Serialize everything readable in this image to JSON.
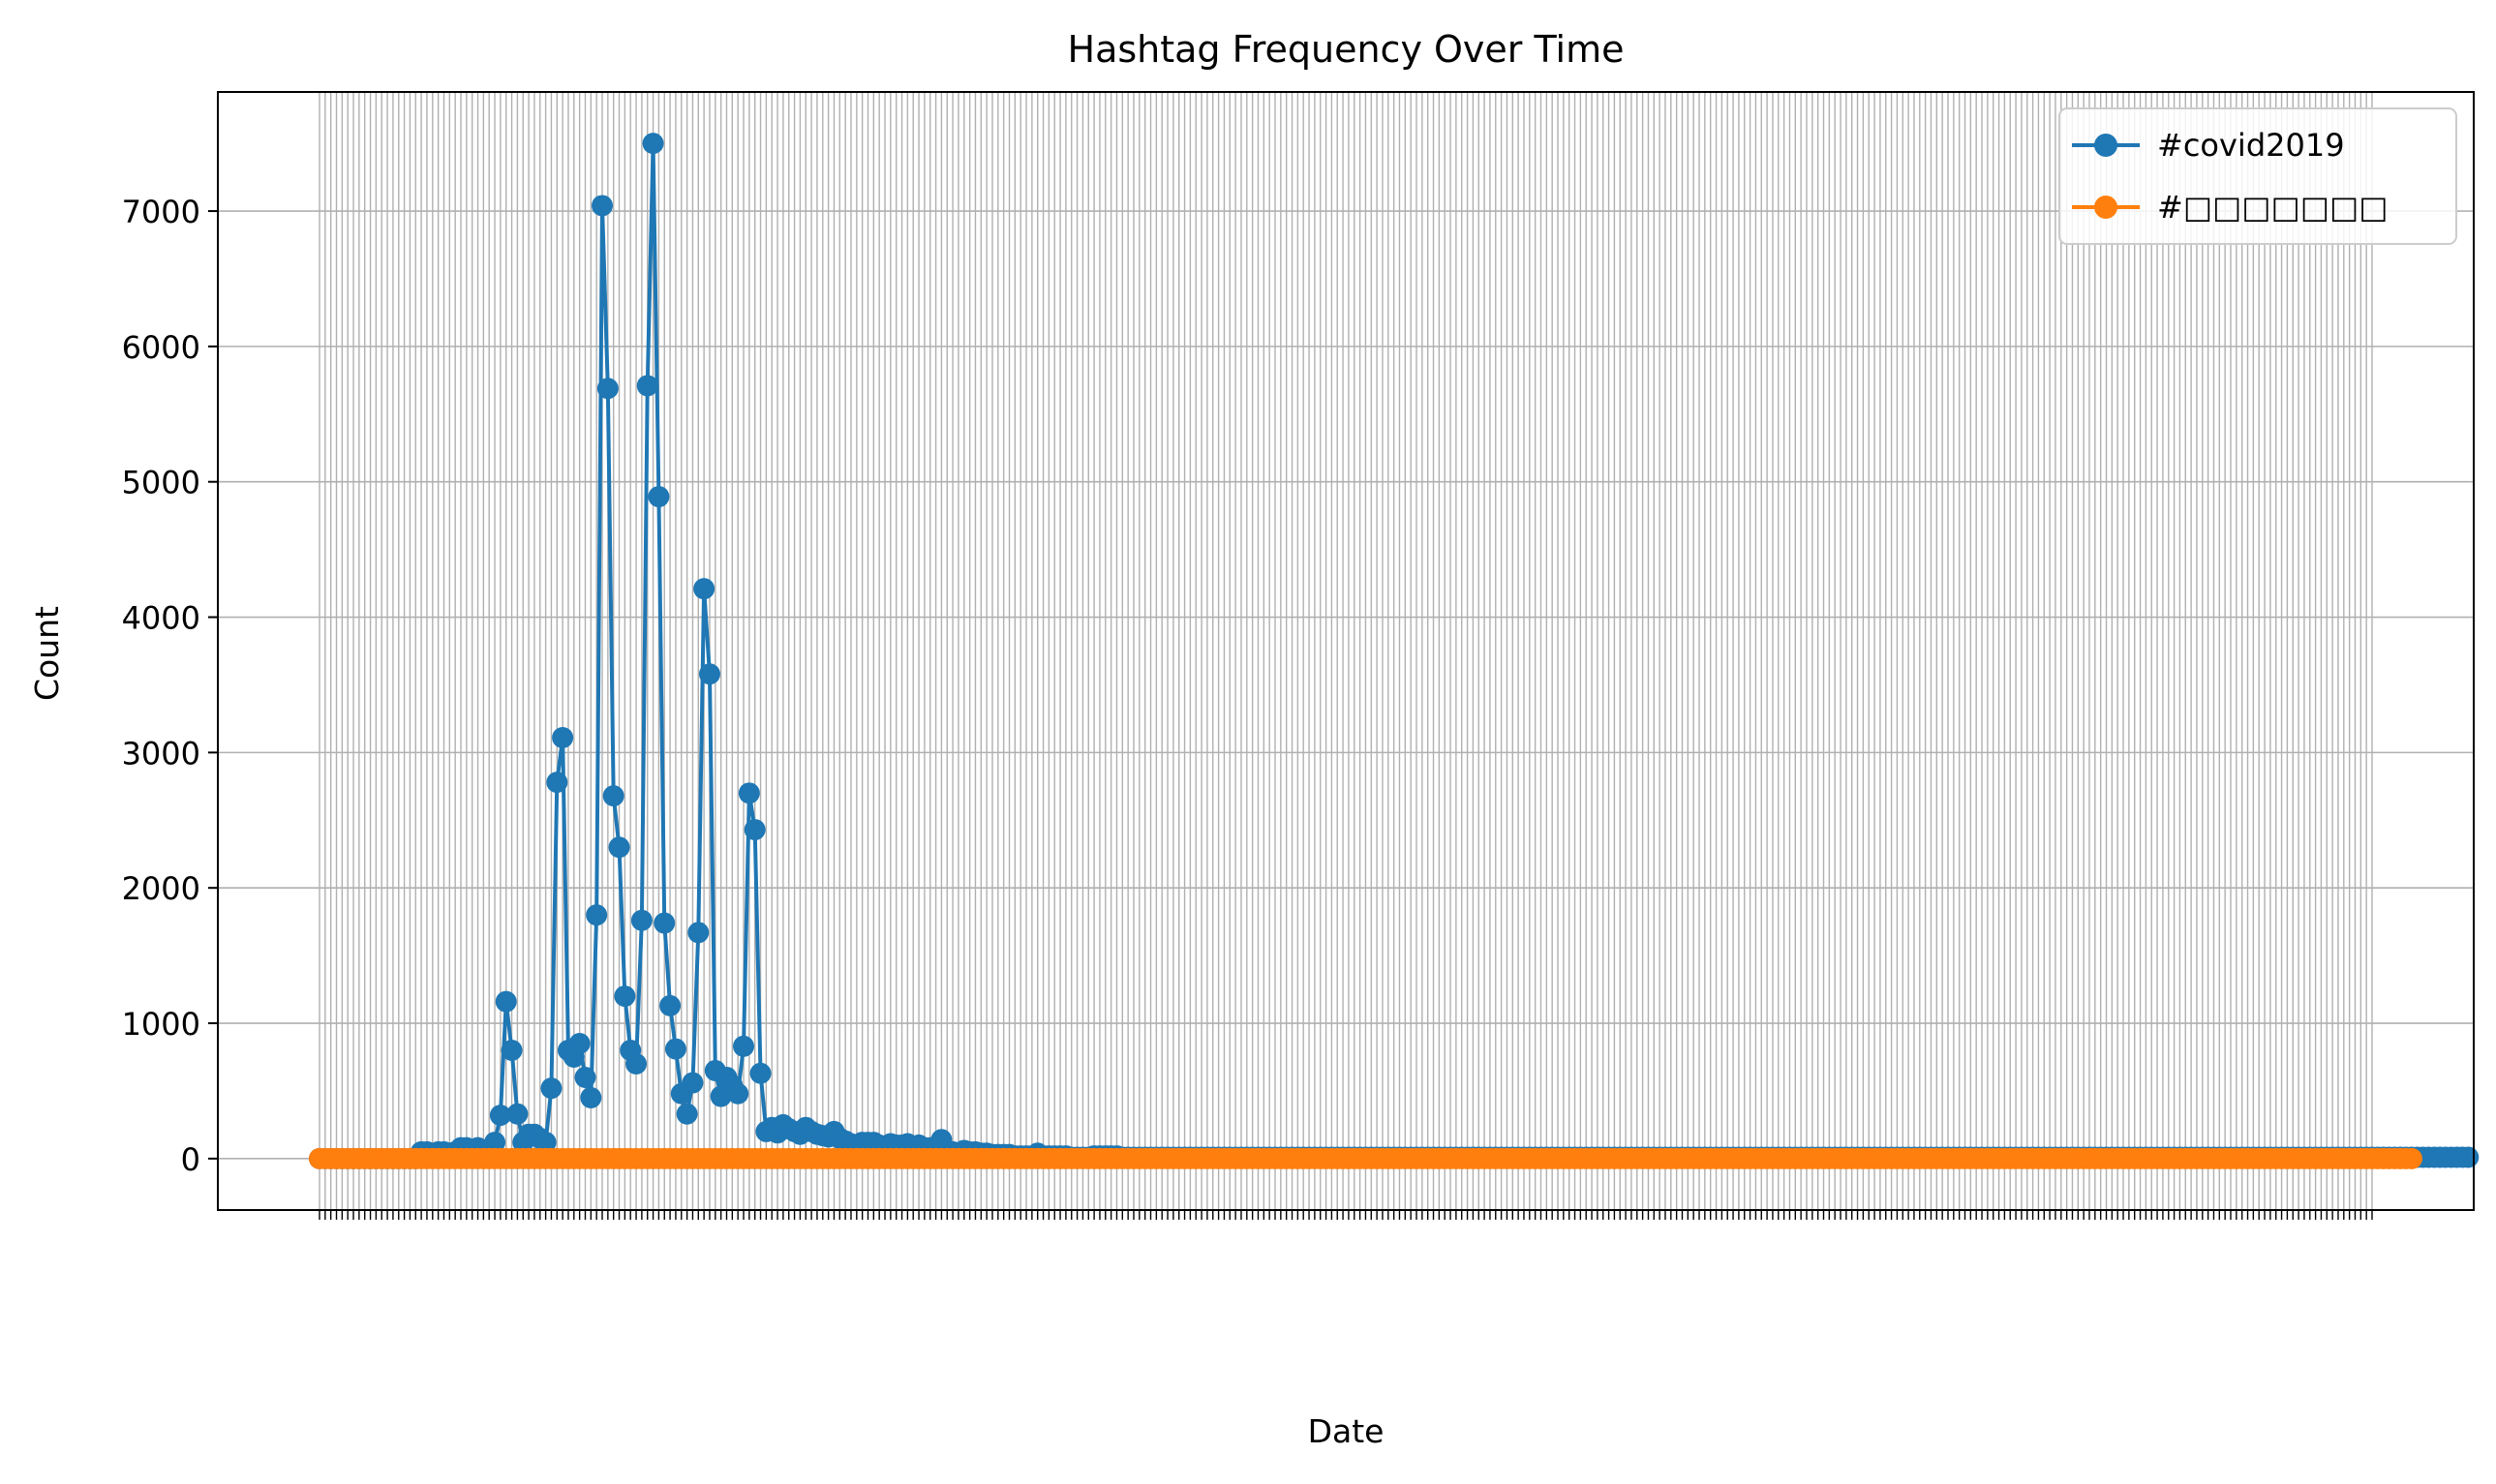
{
  "chart_data": {
    "type": "line",
    "title": "Hashtag Frequency Over Time",
    "xlabel": "Date",
    "ylabel": "Count",
    "ylim": [
      -380,
      7880
    ],
    "yticks": [
      0,
      1000,
      2000,
      3000,
      4000,
      5000,
      6000,
      7000
    ],
    "grid": true,
    "legend_position": "upper right",
    "x_point_count": 364,
    "x_tick_labels_note_text": "",
    "series": [
      {
        "name": "#covid2019",
        "color": "#1f77b4",
        "values": [
          0,
          0,
          0,
          0,
          0,
          0,
          0,
          0,
          0,
          0,
          0,
          0,
          0,
          0,
          0,
          0,
          0,
          0,
          50,
          50,
          30,
          50,
          50,
          40,
          50,
          80,
          80,
          60,
          80,
          60,
          60,
          120,
          320,
          1160,
          800,
          330,
          120,
          180,
          180,
          150,
          120,
          520,
          2780,
          3110,
          800,
          750,
          850,
          600,
          450,
          1800,
          7040,
          5690,
          2680,
          2300,
          1200,
          800,
          700,
          1760,
          5710,
          7500,
          4890,
          1740,
          1130,
          810,
          480,
          330,
          560,
          1670,
          4210,
          3580,
          650,
          460,
          600,
          540,
          480,
          830,
          2700,
          2430,
          630,
          200,
          230,
          190,
          250,
          220,
          200,
          180,
          230,
          200,
          180,
          170,
          160,
          200,
          150,
          130,
          110,
          100,
          120,
          120,
          120,
          100,
          80,
          110,
          100,
          100,
          110,
          90,
          100,
          80,
          80,
          80,
          140,
          50,
          50,
          40,
          60,
          50,
          50,
          40,
          40,
          30,
          30,
          30,
          30,
          20,
          20,
          20,
          20,
          40,
          20,
          20,
          20,
          20,
          20,
          10,
          10,
          10,
          10,
          20,
          20,
          20,
          20,
          20,
          10,
          10,
          10,
          10,
          10,
          10,
          10,
          10,
          10,
          10,
          10,
          10,
          10,
          10,
          10,
          10,
          10,
          10,
          10,
          10,
          10,
          10,
          10,
          10,
          10,
          10,
          10,
          10,
          10,
          10,
          10,
          10,
          10,
          10,
          10,
          10,
          10,
          10,
          10,
          10,
          10,
          10,
          10,
          10,
          10,
          10,
          10,
          10,
          10,
          10,
          10,
          10,
          10,
          10,
          10,
          10,
          10,
          10,
          10,
          10,
          10,
          10,
          10,
          10,
          10,
          10,
          10,
          10,
          10,
          10,
          10,
          10,
          10,
          10,
          10,
          10,
          10,
          10,
          10,
          10,
          10,
          10,
          10,
          10,
          10,
          10,
          10,
          10,
          10,
          10,
          10,
          10,
          10,
          10,
          10,
          10,
          10,
          10,
          10,
          10,
          10,
          10,
          10,
          10,
          10,
          10,
          10,
          10,
          10,
          10,
          10,
          10,
          10,
          10,
          10,
          10,
          10,
          10,
          10,
          10,
          10,
          10,
          10,
          10,
          10,
          10,
          10,
          10,
          10,
          10,
          10,
          10,
          10,
          10,
          10,
          10,
          10,
          10,
          10,
          10,
          10,
          10,
          10,
          10,
          10,
          10,
          10,
          10,
          10,
          10,
          10,
          10,
          10,
          10,
          10,
          10,
          10,
          10,
          10,
          10,
          10,
          10,
          10,
          10,
          10,
          10,
          10,
          10,
          10,
          10,
          10,
          10,
          10,
          10,
          10,
          10,
          10,
          10,
          10,
          10,
          10,
          10,
          10,
          10,
          10,
          10,
          10,
          10,
          10,
          10,
          10,
          10,
          10,
          10,
          10,
          10,
          10,
          10,
          10,
          10,
          10,
          10,
          10,
          10,
          10,
          10,
          10,
          10,
          10,
          10,
          10,
          10,
          10,
          10,
          10,
          10,
          10,
          10,
          10,
          10,
          10,
          10,
          10,
          10,
          10,
          10,
          10,
          10,
          10,
          10,
          10,
          10,
          10,
          10,
          10,
          10,
          10,
          10,
          10
        ]
      },
      {
        "name": "#□□□□□□□",
        "color": "#ff7f0e",
        "values": [
          0,
          0,
          0,
          0,
          0,
          0,
          0,
          0,
          0,
          0,
          0,
          0,
          0,
          0,
          0,
          0,
          0,
          0,
          0,
          0,
          0,
          0,
          0,
          0,
          0,
          0,
          0,
          0,
          0,
          0,
          0,
          0,
          0,
          0,
          0,
          0,
          0,
          0,
          0,
          0,
          0,
          0,
          0,
          0,
          0,
          0,
          0,
          0,
          0,
          0,
          0,
          0,
          0,
          0,
          0,
          0,
          0,
          0,
          0,
          0,
          0,
          0,
          0,
          0,
          0,
          0,
          0,
          0,
          0,
          0,
          0,
          0,
          0,
          0,
          0,
          0,
          0,
          0,
          0,
          0,
          0,
          0,
          0,
          0,
          0,
          0,
          0,
          0,
          0,
          0,
          0,
          0,
          0,
          0,
          0,
          0,
          0,
          0,
          0,
          0,
          0,
          0,
          0,
          0,
          0,
          0,
          0,
          0,
          0,
          0,
          0,
          0,
          0,
          0,
          0,
          0,
          0,
          0,
          0,
          0,
          0,
          0,
          0,
          0,
          0,
          0,
          0,
          0,
          0,
          0,
          0,
          0,
          0,
          0,
          0,
          0,
          0,
          0,
          0,
          0,
          0,
          0,
          0,
          0,
          0,
          0,
          0,
          0,
          0,
          0,
          0,
          0,
          0,
          0,
          0,
          0,
          0,
          0,
          0,
          0,
          0,
          0,
          0,
          0,
          0,
          0,
          0,
          0,
          0,
          0,
          0,
          0,
          0,
          0,
          0,
          0,
          0,
          0,
          0,
          0,
          0,
          0,
          0,
          0,
          0,
          0,
          0,
          0,
          0,
          0,
          0,
          0,
          0,
          0,
          0,
          0,
          0,
          0,
          0,
          0,
          0,
          0,
          0,
          0,
          0,
          0,
          0,
          0,
          0,
          0,
          0,
          0,
          0,
          0,
          0,
          0,
          0,
          0,
          0,
          0,
          0,
          0,
          0,
          0,
          0,
          0,
          0,
          0,
          0,
          0,
          0,
          0,
          0,
          0,
          0,
          0,
          0,
          0,
          0,
          0,
          0,
          0,
          0,
          0,
          0,
          0,
          0,
          0,
          0,
          0,
          0,
          0,
          0,
          0,
          0,
          0,
          0,
          0,
          0,
          0,
          0,
          0,
          0,
          0,
          0,
          0,
          0,
          0,
          0,
          0,
          0,
          0,
          0,
          0,
          0,
          0,
          0,
          0,
          0,
          0,
          0,
          0,
          0,
          0,
          0,
          0,
          0,
          0,
          0,
          0,
          0,
          0,
          0,
          0,
          0,
          0,
          0,
          0,
          0,
          0,
          0,
          0,
          0,
          0,
          0,
          0,
          0,
          0,
          0,
          0,
          0,
          0,
          0,
          0,
          0,
          0,
          0,
          0,
          0,
          0,
          0,
          0,
          0,
          0,
          0,
          0,
          0,
          0,
          0,
          0,
          0,
          0,
          0,
          0,
          0,
          0,
          0,
          0,
          0,
          0,
          0,
          0,
          0,
          0,
          0,
          0,
          0,
          0,
          0,
          0,
          0,
          0,
          0,
          0,
          0,
          0,
          0,
          0,
          0,
          0,
          0,
          0,
          0,
          0,
          0,
          0,
          0,
          0,
          0,
          0,
          0
        ]
      }
    ]
  }
}
